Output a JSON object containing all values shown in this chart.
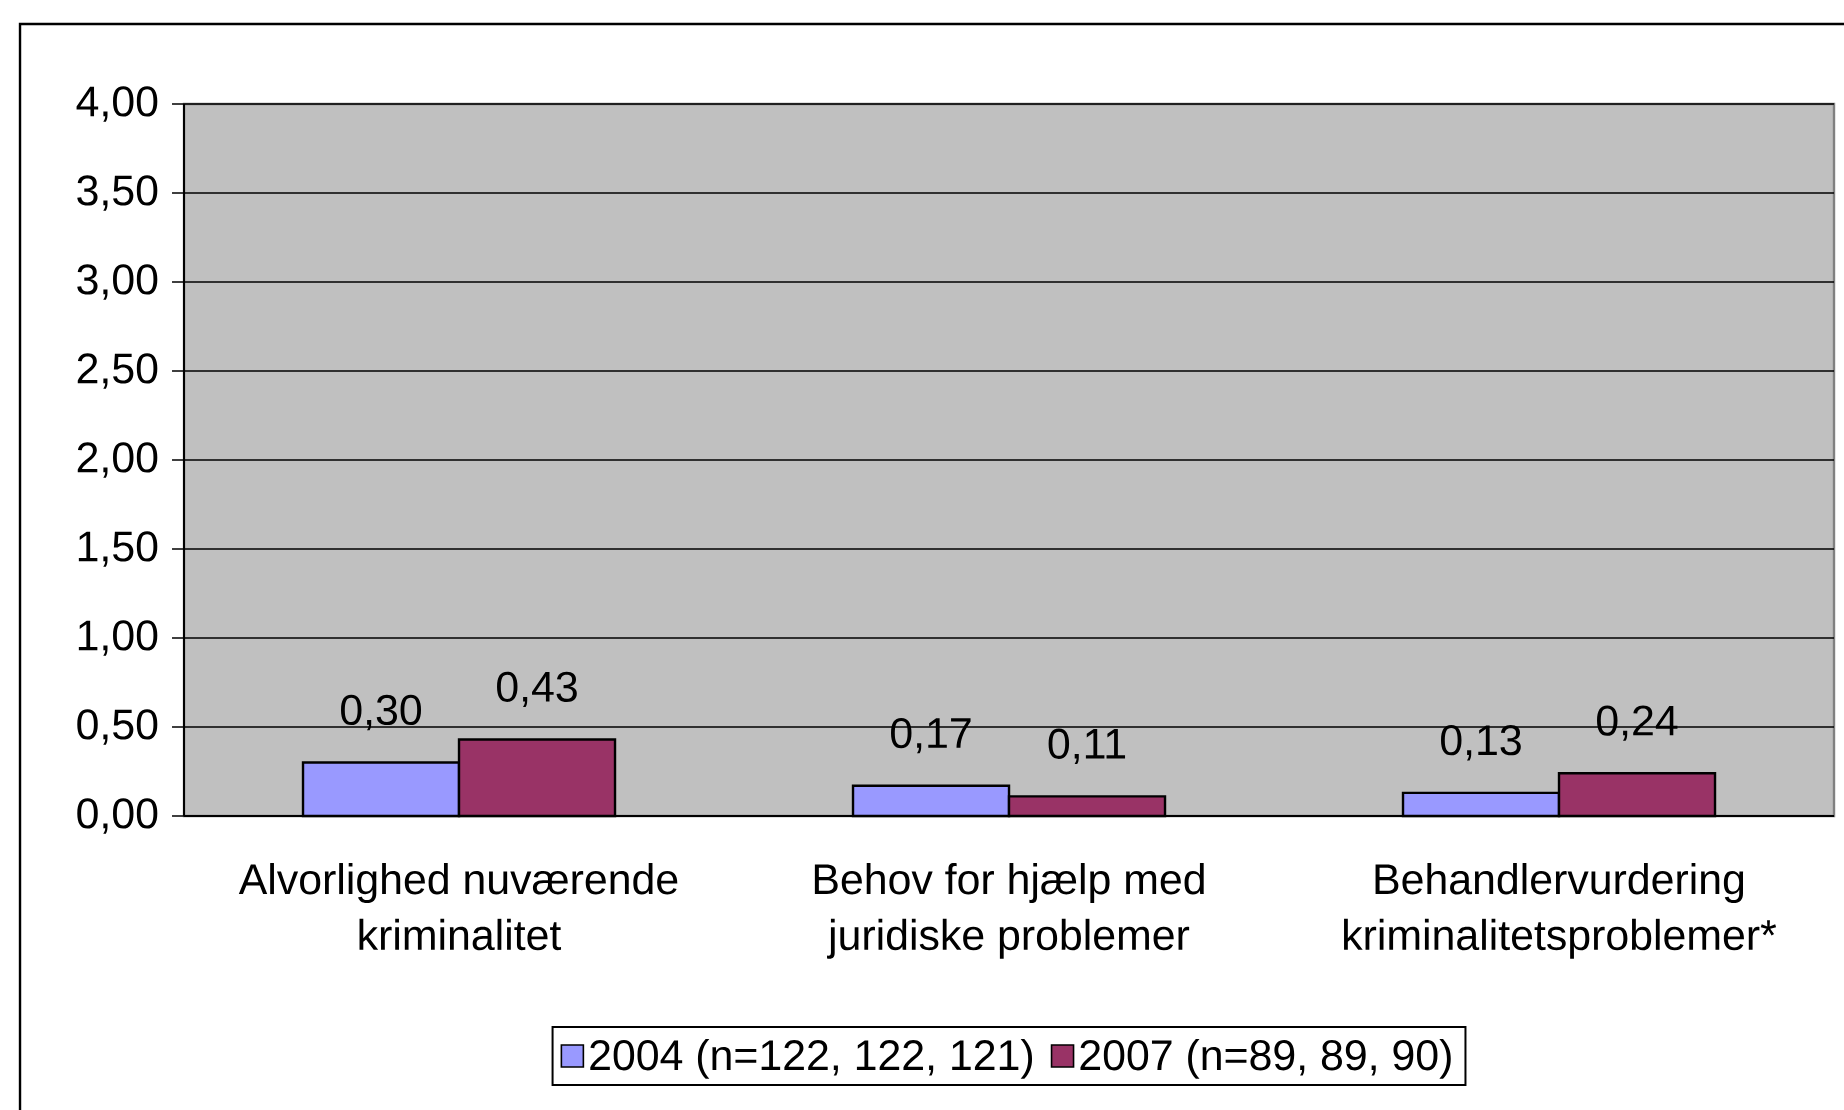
{
  "chart_data": {
    "type": "bar",
    "categories": [
      "Alvorlighed nuværende kriminalitet",
      "Behov for hjælp med juridiske problemer",
      "Behandlervurdering kriminalitetsproblemer*"
    ],
    "series": [
      {
        "name": "2004 (n=122, 122, 121)",
        "color": "#9999ff",
        "values": [
          0.3,
          0.17,
          0.13
        ],
        "value_labels": [
          "0,30",
          "0,17",
          "0,13"
        ]
      },
      {
        "name": "2007 (n=89, 89, 90)",
        "color": "#993366",
        "values": [
          0.43,
          0.11,
          0.24
        ],
        "value_labels": [
          "0,43",
          "0,11",
          "0,24"
        ]
      }
    ],
    "ylim": [
      0,
      4
    ],
    "yticks": [
      {
        "value": 0,
        "label": "0,00"
      },
      {
        "value": 0.5,
        "label": "0,50"
      },
      {
        "value": 1,
        "label": "1,00"
      },
      {
        "value": 1.5,
        "label": "1,50"
      },
      {
        "value": 2,
        "label": "2,00"
      },
      {
        "value": 2.5,
        "label": "2,50"
      },
      {
        "value": 3,
        "label": "3,00"
      },
      {
        "value": 3.5,
        "label": "3,50"
      },
      {
        "value": 4,
        "label": "4,00"
      }
    ],
    "grid": "y",
    "legend": "bottom"
  }
}
